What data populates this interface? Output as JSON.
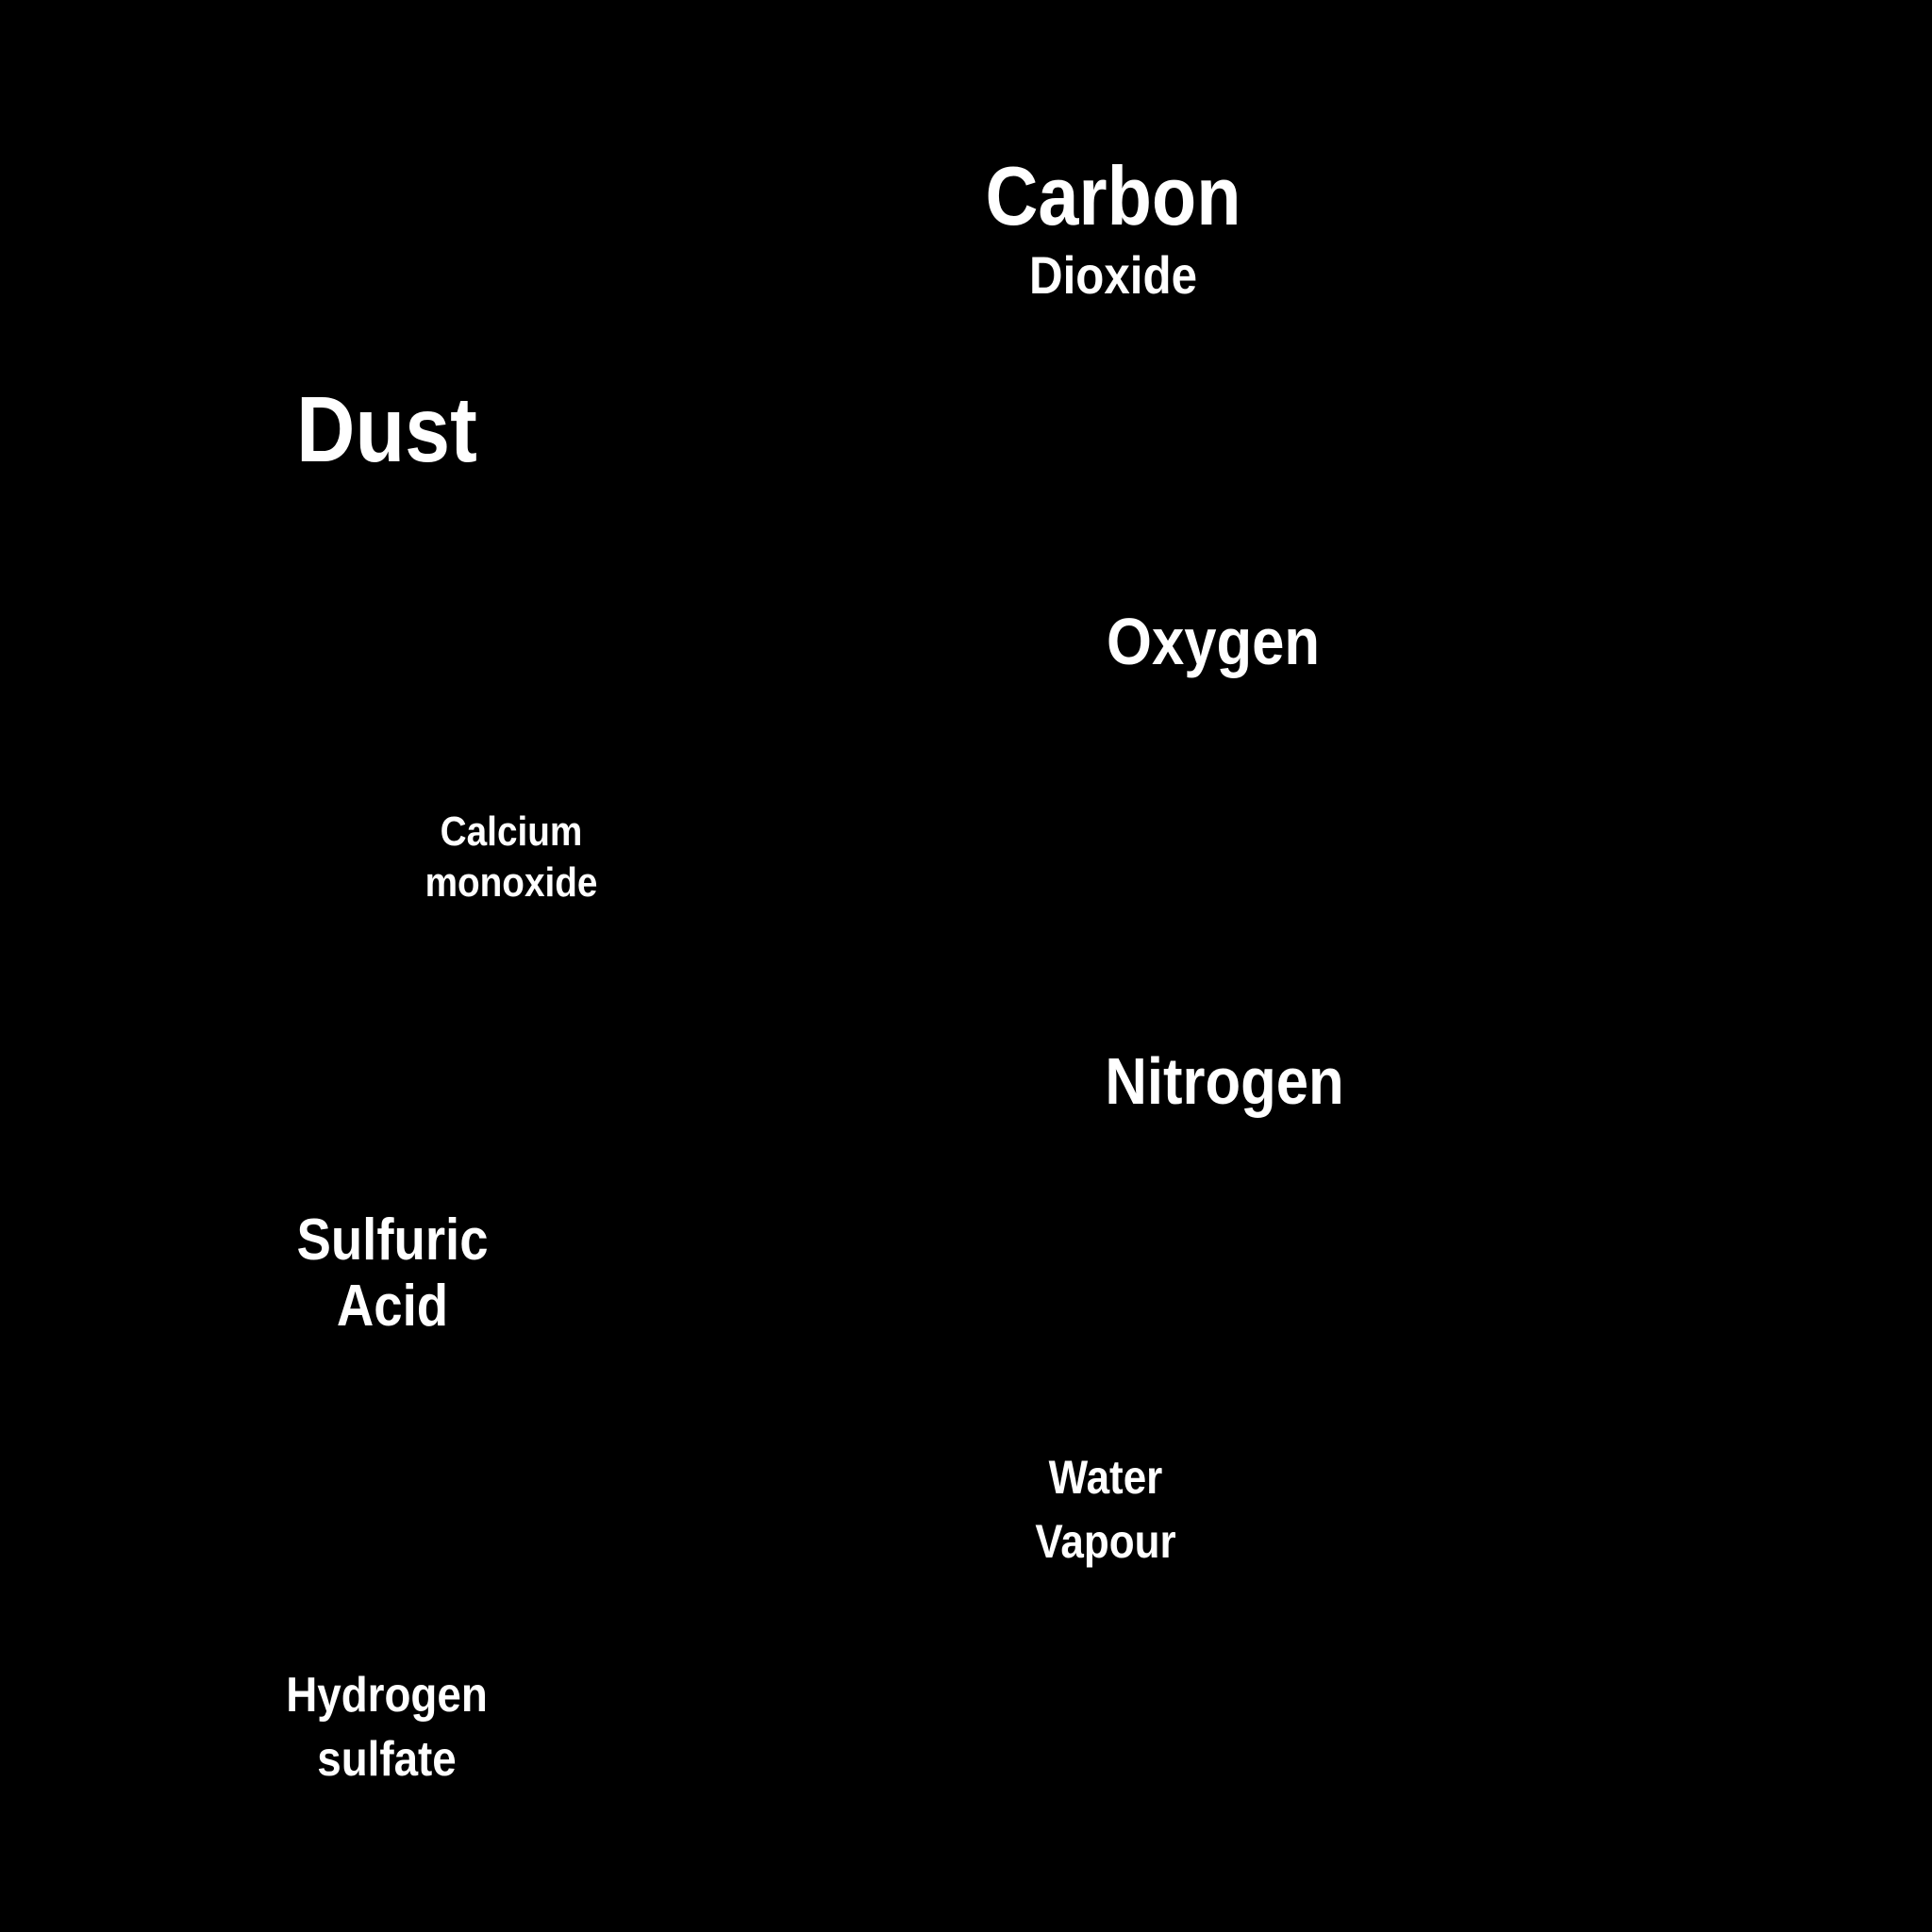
{
  "background_color": "#000000",
  "text_color": "#ffffff",
  "terms": {
    "carbon_dioxide": {
      "line1": "Carbon",
      "line2": "Dioxide"
    },
    "dust": {
      "line1": "Dust"
    },
    "oxygen": {
      "line1": "Oxygen"
    },
    "calcium_monoxide": {
      "line1": "Calcium",
      "line2": "monoxide"
    },
    "nitrogen": {
      "line1": "Nitrogen"
    },
    "sulfuric_acid": {
      "line1": "Sulfuric",
      "line2": "Acid"
    },
    "water_vapour": {
      "line1": "Water",
      "line2": "Vapour"
    },
    "hydrogen_sulfate": {
      "line1": "Hydrogen",
      "line2": "sulfate"
    }
  }
}
